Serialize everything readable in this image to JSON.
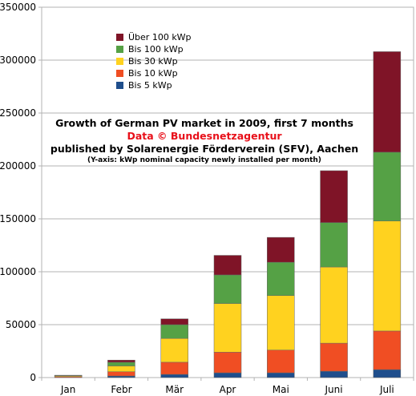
{
  "chart_data": {
    "type": "bar",
    "stacked": true,
    "title": "Growth of German PV market in 2009, first 7 months",
    "subtitle_source": "Data © Bundesnetzagentur",
    "subtitle_publisher": "published by Solarenergie Förderverein (SFV), Aachen",
    "subtitle_axis": "(Y-axis: kWp nominal capacity newly installed per month)",
    "categories": [
      "Jan",
      "Febr",
      "Mär",
      "Apr",
      "Mai",
      "Juni",
      "Juli"
    ],
    "series": [
      {
        "name": "Bis 5 kWp",
        "color": "#1f4e8c",
        "values": [
          200,
          1500,
          3000,
          4500,
          4500,
          6000,
          7500
        ]
      },
      {
        "name": "Bis 10 kWp",
        "color": "#f04e23",
        "values": [
          800,
          4000,
          11500,
          19500,
          21500,
          26500,
          36500
        ]
      },
      {
        "name": "Bis 30 kWp",
        "color": "#ffd21f",
        "values": [
          800,
          5500,
          22500,
          46000,
          51500,
          72000,
          104000
        ]
      },
      {
        "name": "Bis 100 kWp",
        "color": "#55a145",
        "values": [
          300,
          3500,
          13000,
          27000,
          31500,
          42000,
          65000
        ]
      },
      {
        "name": "Über 100 kWp",
        "color": "#7f1427",
        "values": [
          100,
          2000,
          5500,
          18500,
          23500,
          49000,
          95000
        ]
      }
    ],
    "ylim": [
      0,
      350000
    ],
    "yticks": [
      0,
      50000,
      100000,
      150000,
      200000,
      250000,
      300000,
      350000
    ],
    "grid": true,
    "legend_position": "top-left"
  }
}
